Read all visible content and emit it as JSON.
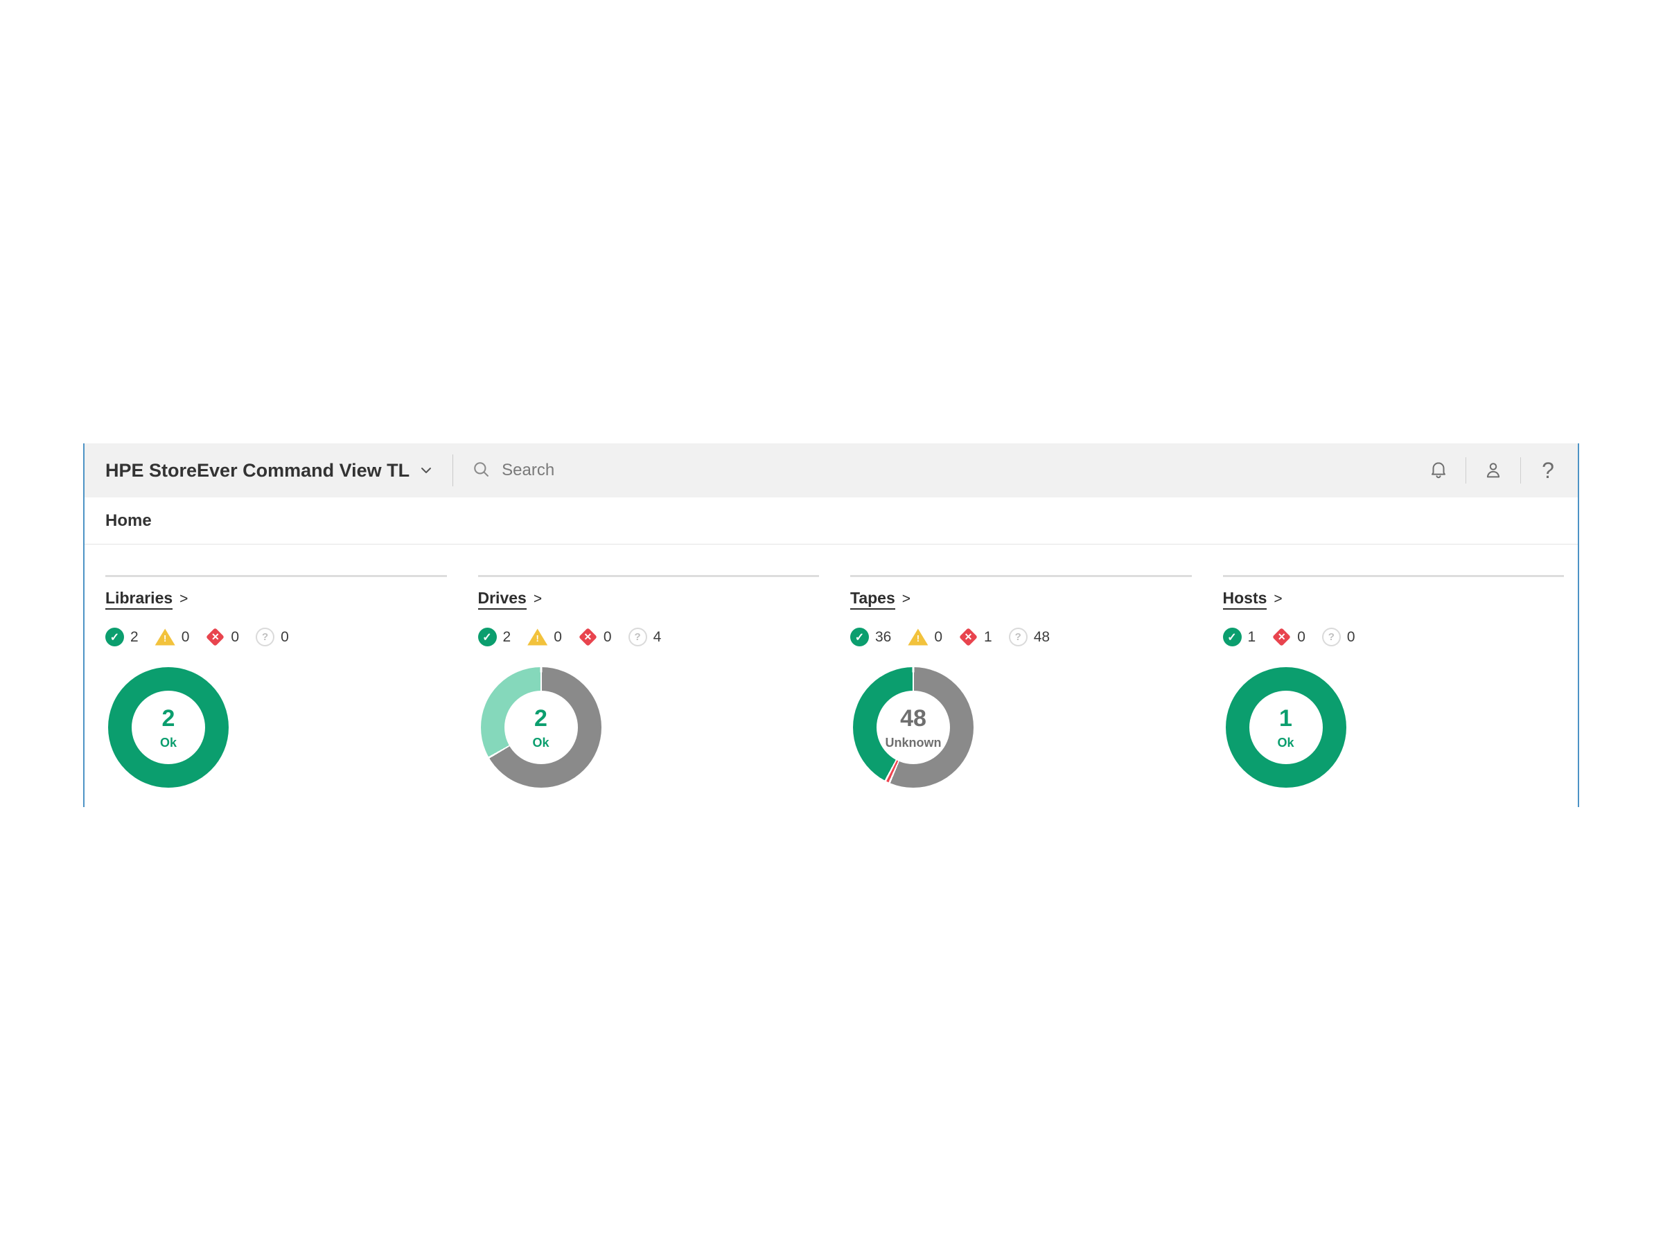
{
  "header": {
    "app_title": "HPE StoreEver Command View TL",
    "search_placeholder": "Search",
    "help_glyph": "?",
    "icons": [
      "notifications-bell-icon",
      "user-icon",
      "help-icon"
    ]
  },
  "breadcrumb": {
    "home_label": "Home"
  },
  "icon_glyphs": {
    "ok": "✓",
    "warning": "!",
    "critical": "✕",
    "unknown": "?"
  },
  "colors": {
    "ok": "#0b9e6e",
    "ok_light": "#85d8bb",
    "warning": "#f2c23c",
    "critical": "#e8444e",
    "unknown_ring": "#8a8a8a",
    "unknown_text": "#6f6f6f",
    "unknown_icon_border": "#dadada",
    "accent_border": "#4d93c5"
  },
  "cards": [
    {
      "title": "Libraries",
      "link_arrow": ">",
      "statuses": [
        {
          "icon": "ok",
          "count": 2
        },
        {
          "icon": "warning",
          "count": 0
        },
        {
          "icon": "critical",
          "count": 0
        },
        {
          "icon": "unknown",
          "count": 0
        }
      ]
    },
    {
      "title": "Drives",
      "link_arrow": ">",
      "statuses": [
        {
          "icon": "ok",
          "count": 2
        },
        {
          "icon": "warning",
          "count": 0
        },
        {
          "icon": "critical",
          "count": 0
        },
        {
          "icon": "unknown",
          "count": 4
        }
      ]
    },
    {
      "title": "Tapes",
      "link_arrow": ">",
      "statuses": [
        {
          "icon": "ok",
          "count": 36
        },
        {
          "icon": "warning",
          "count": 0
        },
        {
          "icon": "critical",
          "count": 1
        },
        {
          "icon": "unknown",
          "count": 48
        }
      ]
    },
    {
      "title": "Hosts",
      "link_arrow": ">",
      "statuses": [
        {
          "icon": "ok",
          "count": 1
        },
        {
          "icon": "critical",
          "count": 0
        },
        {
          "icon": "unknown",
          "count": 0
        }
      ]
    }
  ],
  "chart_data": [
    {
      "type": "pie",
      "title": "Libraries",
      "center_value": "2",
      "center_label": "Ok",
      "center_color": "#0b9e6e",
      "segments": [
        {
          "label": "Ok",
          "value": 2,
          "color": "#0b9e6e"
        }
      ]
    },
    {
      "type": "pie",
      "title": "Drives",
      "center_value": "2",
      "center_label": "Ok",
      "center_color": "#0b9e6e",
      "segments": [
        {
          "label": "Unknown",
          "value": 4,
          "color": "#8a8a8a"
        },
        {
          "label": "Ok",
          "value": 2,
          "color": "#85d8bb"
        }
      ]
    },
    {
      "type": "pie",
      "title": "Tapes",
      "center_value": "48",
      "center_label": "Unknown",
      "center_color": "#6f6f6f",
      "segments": [
        {
          "label": "Unknown",
          "value": 48,
          "color": "#8a8a8a"
        },
        {
          "label": "Critical",
          "value": 1,
          "color": "#ef4450"
        },
        {
          "label": "Ok",
          "value": 36,
          "color": "#0b9e6e"
        }
      ]
    },
    {
      "type": "pie",
      "title": "Hosts",
      "center_value": "1",
      "center_label": "Ok",
      "center_color": "#0b9e6e",
      "segments": [
        {
          "label": "Ok",
          "value": 1,
          "color": "#0b9e6e"
        }
      ]
    }
  ]
}
